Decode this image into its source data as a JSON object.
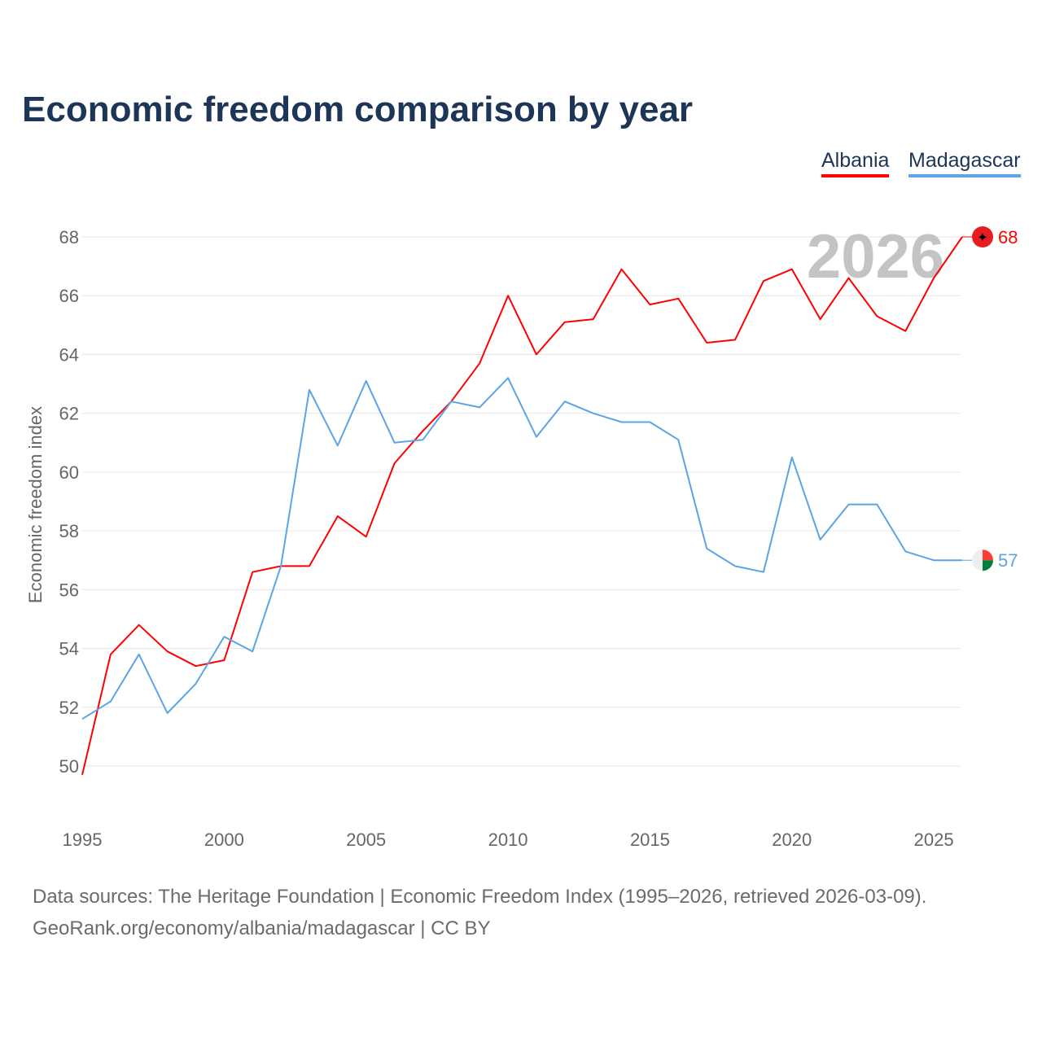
{
  "title": "Economic freedom comparison by year",
  "footer": {
    "line1": "Data sources: The Heritage Foundation | Economic Freedom Index (1995–2026, retrieved 2026-03-09).",
    "line2": "GeoRank.org/economy/albania/madagascar | CC BY"
  },
  "chart_data": {
    "type": "line",
    "title": "Economic freedom comparison by year",
    "xlabel": "",
    "ylabel": "Economic freedom index",
    "year_label": "2026",
    "x": [
      1995,
      1996,
      1997,
      1998,
      1999,
      2000,
      2001,
      2002,
      2003,
      2004,
      2005,
      2006,
      2007,
      2008,
      2009,
      2010,
      2011,
      2012,
      2013,
      2014,
      2015,
      2016,
      2017,
      2018,
      2019,
      2020,
      2021,
      2022,
      2023,
      2024,
      2025,
      2026
    ],
    "xlim": [
      1995,
      2026
    ],
    "ylim": [
      48,
      69
    ],
    "xticks": [
      "1995",
      "2000",
      "2005",
      "2010",
      "2015",
      "2020",
      "2025"
    ],
    "yticks": [
      "50",
      "52",
      "54",
      "56",
      "58",
      "60",
      "62",
      "64",
      "66",
      "68"
    ],
    "legend_position": "top-right",
    "series": [
      {
        "name": "Albania",
        "color": "#ff0000",
        "end_label": "68",
        "values": [
          49.7,
          53.8,
          54.8,
          53.9,
          53.4,
          53.6,
          56.6,
          56.8,
          56.8,
          58.5,
          57.8,
          60.3,
          61.4,
          62.4,
          63.7,
          66.0,
          64.0,
          65.1,
          65.2,
          66.9,
          65.7,
          65.9,
          64.4,
          64.5,
          66.5,
          66.9,
          65.2,
          66.6,
          65.3,
          64.8,
          66.6,
          68.0
        ]
      },
      {
        "name": "Madagascar",
        "color": "#5ba4e6",
        "end_label": "57",
        "values": [
          51.6,
          52.2,
          53.8,
          51.8,
          52.8,
          54.4,
          53.9,
          56.8,
          62.8,
          60.9,
          63.1,
          61.0,
          61.1,
          62.4,
          62.2,
          63.2,
          61.2,
          62.4,
          62.0,
          61.7,
          61.7,
          61.1,
          57.4,
          56.8,
          56.6,
          60.5,
          57.7,
          58.9,
          58.9,
          57.3,
          57.0,
          57.0
        ]
      }
    ]
  }
}
